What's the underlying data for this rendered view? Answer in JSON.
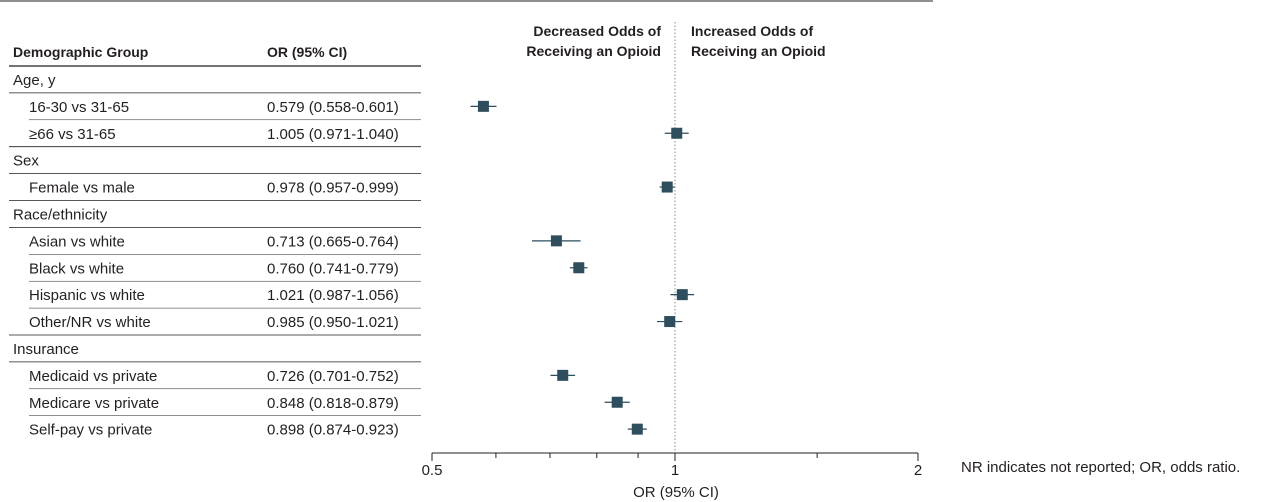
{
  "table": {
    "col_group": "Demographic Group",
    "col_or": "OR (95% CI)"
  },
  "direction_labels": {
    "left": [
      "Decreased Odds of",
      "Receiving an Opioid"
    ],
    "right": [
      "Increased Odds of",
      "Receiving an Opioid"
    ]
  },
  "footnote": "NR indicates not reported; OR, odds ratio.",
  "colors": {
    "marker": "#2e4e5e",
    "text": "#231f20",
    "rule": "#231f20",
    "reference_line": "#8a8a8a"
  },
  "chart_data": {
    "type": "forest",
    "xlabel": "OR (95% CI)",
    "xscale": "log",
    "xlim": [
      0.5,
      2
    ],
    "xticks": [
      0.5,
      1,
      2
    ],
    "xtick_labels": [
      "0.5",
      "1",
      "2"
    ],
    "reference_value": 1,
    "groups": [
      {
        "name": "Age, y",
        "rows": [
          {
            "label": "16-30 vs 31-65",
            "or_text": "0.579 (0.558-0.601)",
            "or": 0.579,
            "lo": 0.558,
            "hi": 0.601
          },
          {
            "label": "≥66 vs 31-65",
            "or_text": "1.005 (0.971-1.040)",
            "or": 1.005,
            "lo": 0.971,
            "hi": 1.04
          }
        ]
      },
      {
        "name": "Sex",
        "rows": [
          {
            "label": "Female vs male",
            "or_text": "0.978 (0.957-0.999)",
            "or": 0.978,
            "lo": 0.957,
            "hi": 0.999
          }
        ]
      },
      {
        "name": "Race/ethnicity",
        "rows": [
          {
            "label": "Asian vs white",
            "or_text": "0.713 (0.665-0.764)",
            "or": 0.713,
            "lo": 0.665,
            "hi": 0.764
          },
          {
            "label": "Black vs white",
            "or_text": "0.760 (0.741-0.779)",
            "or": 0.76,
            "lo": 0.741,
            "hi": 0.779
          },
          {
            "label": "Hispanic vs white",
            "or_text": "1.021 (0.987-1.056)",
            "or": 1.021,
            "lo": 0.987,
            "hi": 1.056
          },
          {
            "label": "Other/NR vs white",
            "or_text": "0.985 (0.950-1.021)",
            "or": 0.985,
            "lo": 0.95,
            "hi": 1.021
          }
        ]
      },
      {
        "name": "Insurance",
        "rows": [
          {
            "label": "Medicaid vs private",
            "or_text": "0.726 (0.701-0.752)",
            "or": 0.726,
            "lo": 0.701,
            "hi": 0.752
          },
          {
            "label": "Medicare vs private",
            "or_text": "0.848 (0.818-0.879)",
            "or": 0.848,
            "lo": 0.818,
            "hi": 0.879
          },
          {
            "label": "Self-pay vs private",
            "or_text": "0.898 (0.874-0.923)",
            "or": 0.898,
            "lo": 0.874,
            "hi": 0.923
          }
        ]
      }
    ]
  }
}
